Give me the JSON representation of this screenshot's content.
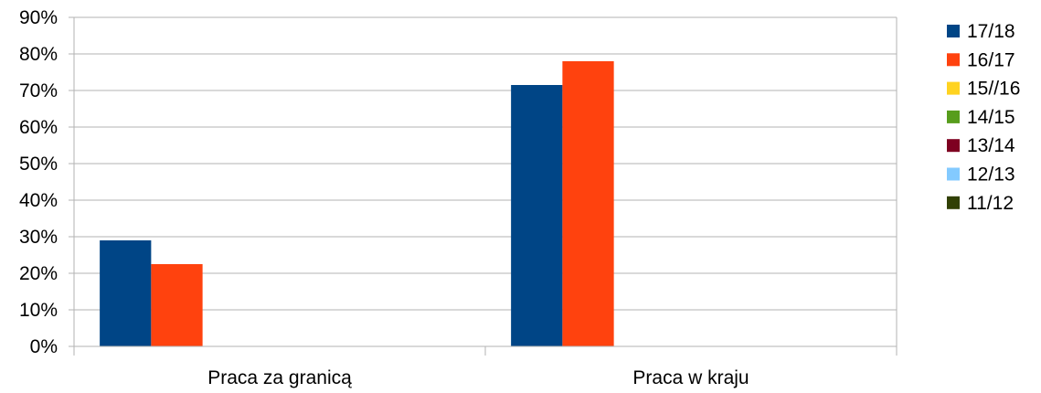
{
  "chart_data": {
    "type": "bar",
    "categories": [
      "Praca za granicą",
      "Praca w kraju"
    ],
    "series": [
      {
        "name": "17/18",
        "color": "#004586",
        "values": [
          29,
          71.5
        ]
      },
      {
        "name": "16/17",
        "color": "#ff420e",
        "values": [
          22.5,
          78
        ]
      },
      {
        "name": "15//16",
        "color": "#ffd320",
        "values": [
          null,
          null
        ]
      },
      {
        "name": "14/15",
        "color": "#579d1c",
        "values": [
          null,
          null
        ]
      },
      {
        "name": "13/14",
        "color": "#7e0021",
        "values": [
          null,
          null
        ]
      },
      {
        "name": "12/13",
        "color": "#83caff",
        "values": [
          null,
          null
        ]
      },
      {
        "name": "11/12",
        "color": "#314004",
        "values": [
          null,
          null
        ]
      }
    ],
    "ylim": [
      0,
      90
    ],
    "yticks": [
      "0%",
      "10%",
      "20%",
      "30%",
      "40%",
      "50%",
      "60%",
      "70%",
      "80%",
      "90%"
    ],
    "grid": true,
    "legend": "right",
    "title": "",
    "xlabel": "",
    "ylabel": ""
  }
}
